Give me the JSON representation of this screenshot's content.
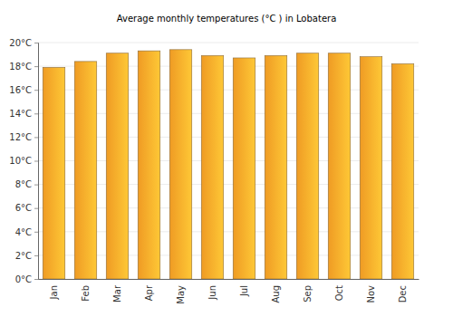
{
  "chart_data": {
    "type": "bar",
    "title": "Average monthly temperatures (°C ) in Lobatera",
    "categories": [
      "Jan",
      "Feb",
      "Mar",
      "Apr",
      "May",
      "Jun",
      "Jul",
      "Aug",
      "Sep",
      "Oct",
      "Nov",
      "Dec"
    ],
    "values": [
      17.9,
      18.4,
      19.1,
      19.3,
      19.4,
      18.9,
      18.7,
      18.9,
      19.1,
      19.1,
      18.8,
      18.2
    ],
    "color": "#fca326",
    "ylim": [
      0,
      20
    ],
    "yticks": [
      {
        "value": 0,
        "label": "0°C"
      },
      {
        "value": 2,
        "label": "2°C"
      },
      {
        "value": 4,
        "label": "4°C"
      },
      {
        "value": 6,
        "label": "6°C"
      },
      {
        "value": 8,
        "label": "8°C"
      },
      {
        "value": 10,
        "label": "10°C"
      },
      {
        "value": 12,
        "label": "12°C"
      },
      {
        "value": 14,
        "label": "14°C"
      },
      {
        "value": 16,
        "label": "16°C"
      },
      {
        "value": 18,
        "label": "18°C"
      },
      {
        "value": 20,
        "label": "20°C"
      }
    ],
    "grid": true
  }
}
